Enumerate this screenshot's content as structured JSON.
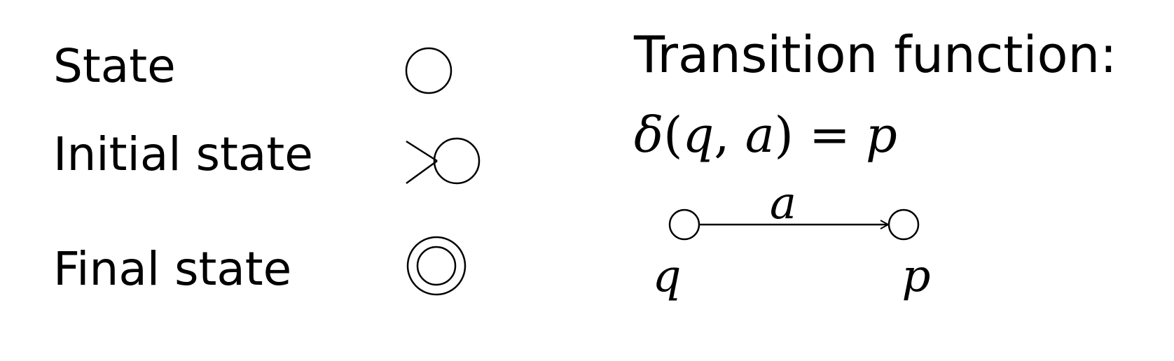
{
  "legend": {
    "state_label": "State",
    "initial_label": "Initial state",
    "final_label": "Final state"
  },
  "transition": {
    "title": "Transition function:",
    "formula": {
      "delta": "δ",
      "open": "(",
      "q": "q",
      "comma": ", ",
      "a": "a",
      "close": ")",
      "eq": " = ",
      "p": "p"
    },
    "example": {
      "from_label": "q",
      "to_label": "p",
      "edge_label": "a"
    }
  }
}
